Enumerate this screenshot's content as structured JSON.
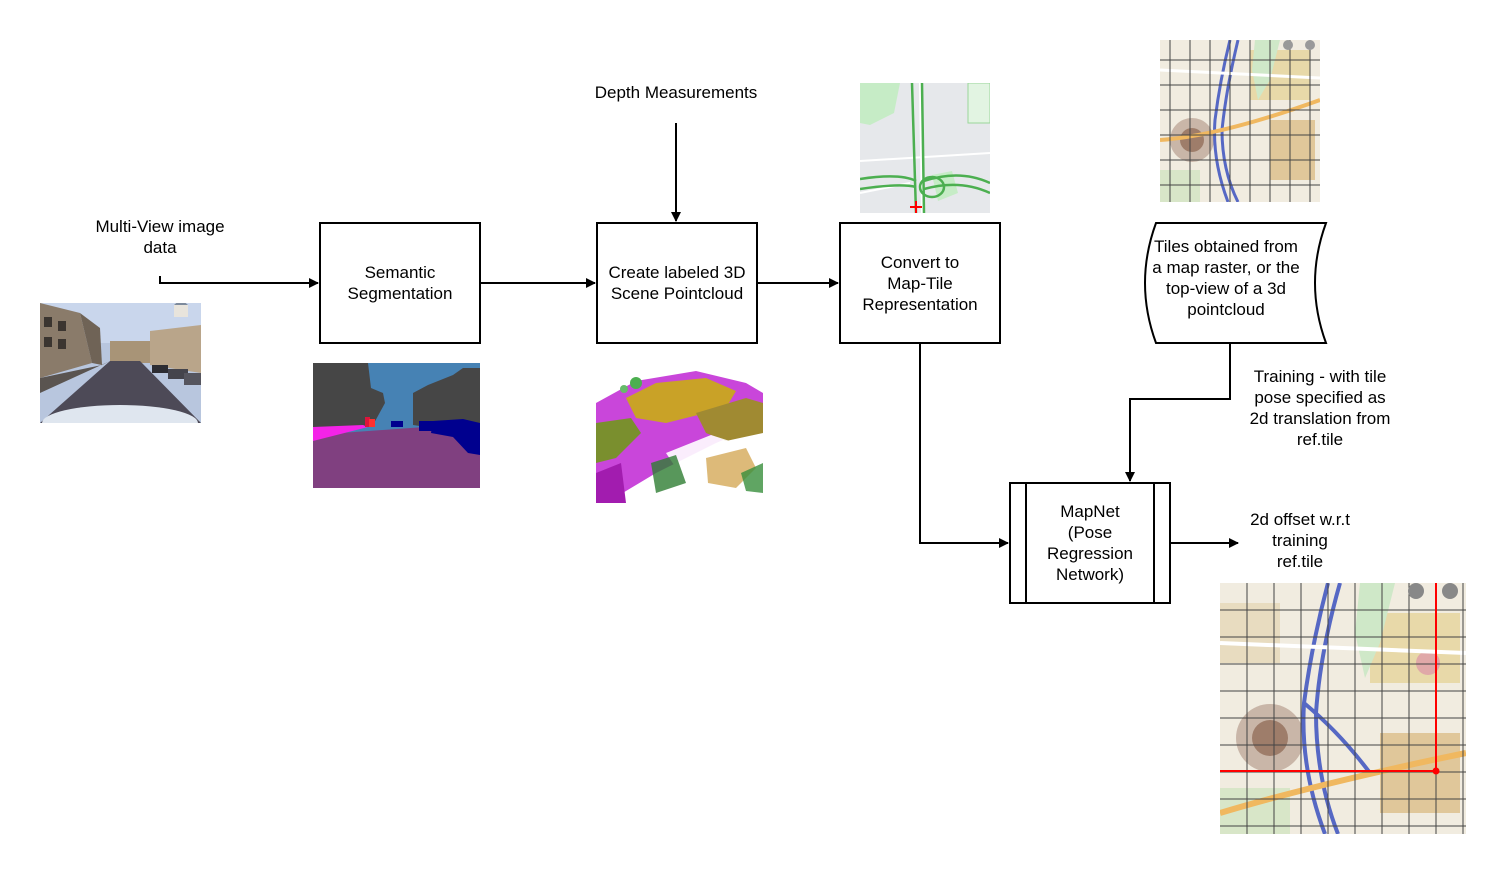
{
  "labels": {
    "input": "Multi-View image\ndata",
    "depth": "Depth Measurements",
    "training": "Training - with tile\npose specified as\n2d translation from\nref.tile",
    "output": "2d offset w.r.t\ntraining\nref.tile"
  },
  "boxes": {
    "segmentation": "Semantic\nSegmentation",
    "pointcloud": "Create labeled 3D\nScene Pointcloud",
    "maptile": "Convert to\nMap-Tile\nRepresentation",
    "tiles_store": "Tiles obtained from\na map raster, or the\ntop-view of a 3d\npointcloud",
    "mapnet": "MapNet\n(Pose\nRegression\nNetwork)"
  },
  "colors": {
    "segmentation_sky": "#4682b4",
    "segmentation_building": "#464646",
    "segmentation_road": "#804080",
    "segmentation_car": "#00008e",
    "segmentation_sidewalk": "#f423e8",
    "map_route": "#ff0000"
  },
  "icons": {
    "street_photo": "street-photo-icon",
    "segmentation_map": "segmentation-map-icon",
    "pointcloud_render": "pointcloud-render-icon",
    "map_tile": "map-tile-icon",
    "reference_tiles": "reference-tiles-map-icon",
    "offset_result": "offset-result-map-icon"
  }
}
